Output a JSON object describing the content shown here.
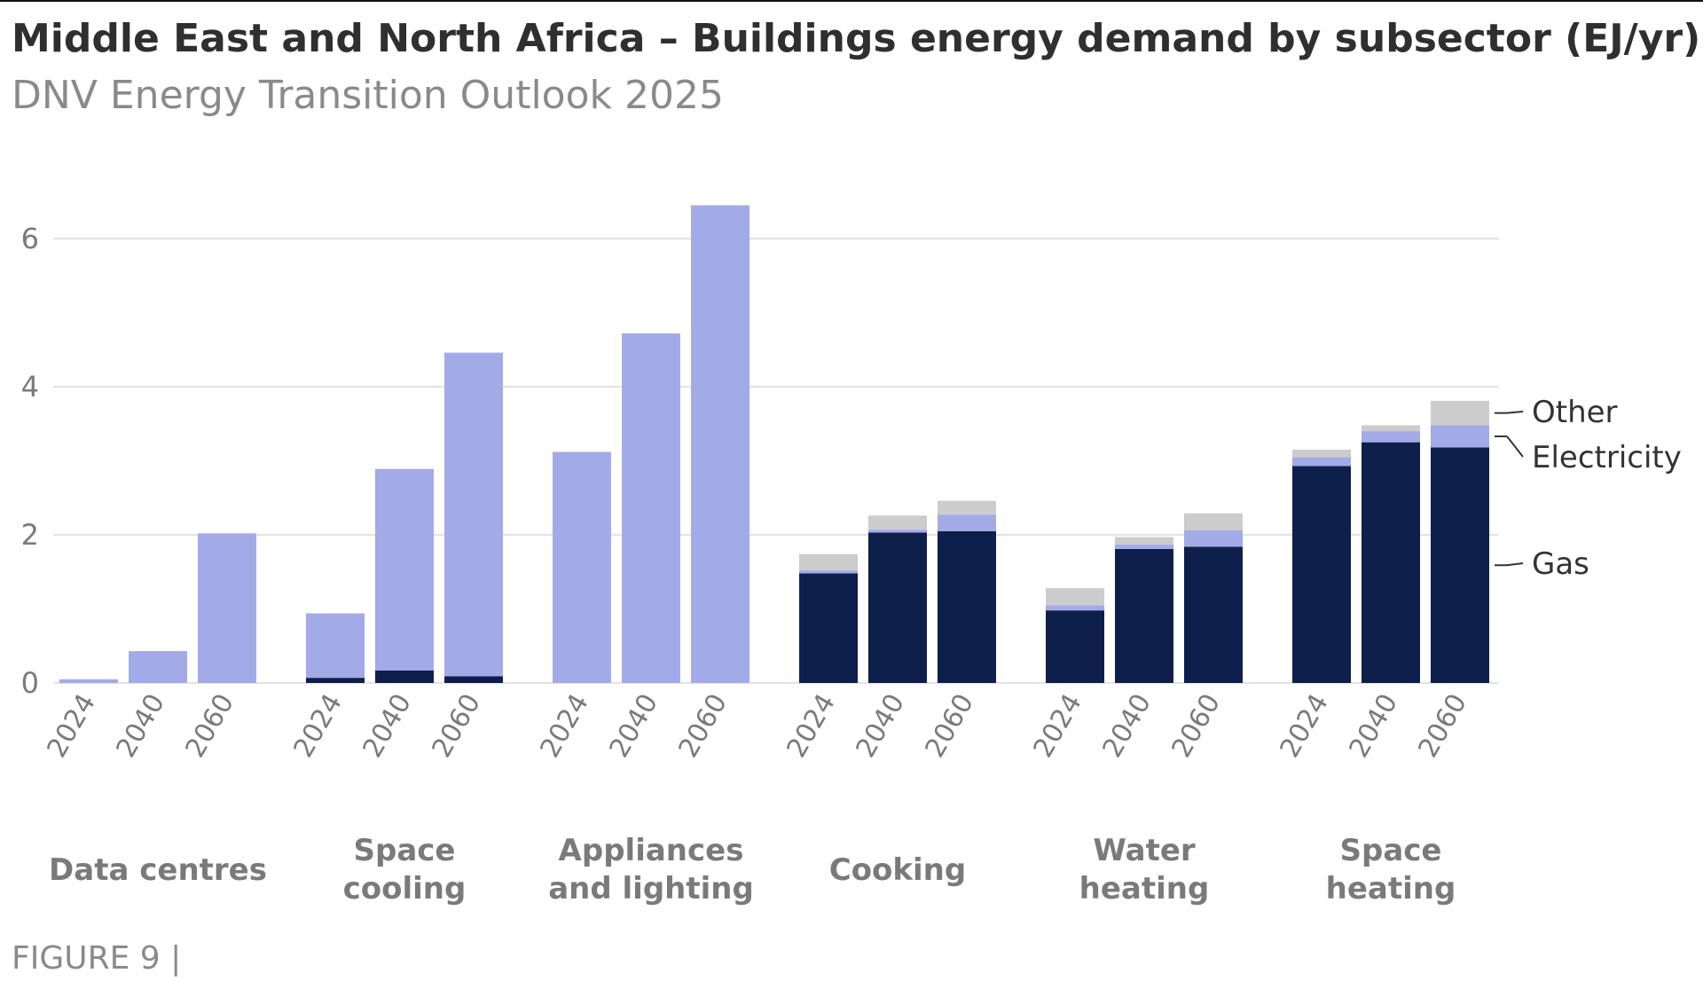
{
  "header": {
    "title": "Middle East and North Africa – Buildings energy demand by subsector (EJ/yr)",
    "subtitle": "DNV Energy Transition Outlook 2025"
  },
  "footer": {
    "figure_label": "FIGURE 9 |"
  },
  "colors": {
    "gas": "#0f1f4b",
    "electricity": "#a3aae8",
    "other": "#cccccc",
    "grid": "#d9d9d9",
    "axis_text": "#7a7a7a"
  },
  "chart_data": {
    "type": "bar",
    "stacked": true,
    "grouped": true,
    "title": "Middle East and North Africa – Buildings energy demand by subsector (EJ/yr)",
    "subtitle": "DNV Energy Transition Outlook 2025",
    "ylim": [
      0,
      6.5
    ],
    "yticks": [
      "0",
      "2",
      "4",
      "6"
    ],
    "ytick_values": [
      0,
      2,
      4,
      6
    ],
    "grid": true,
    "legend_placement": "right",
    "years": [
      "2024",
      "2040",
      "2060"
    ],
    "groups": [
      {
        "name": "Data centres",
        "lines": [
          "Data centres"
        ]
      },
      {
        "name": "Space cooling",
        "lines": [
          "Space",
          "cooling"
        ]
      },
      {
        "name": "Appliances and lighting",
        "lines": [
          "Appliances",
          "and lighting"
        ]
      },
      {
        "name": "Cooking",
        "lines": [
          "Cooking"
        ]
      },
      {
        "name": "Water heating",
        "lines": [
          "Water",
          "heating"
        ]
      },
      {
        "name": "Space heating",
        "lines": [
          "Space",
          "heating"
        ]
      }
    ],
    "series": [
      {
        "name": "Gas",
        "color": "#0f1f4b",
        "values": [
          [
            0,
            0,
            0
          ],
          [
            0.07,
            0.17,
            0.09
          ],
          [
            0,
            0,
            0
          ],
          [
            1.48,
            2.03,
            2.05
          ],
          [
            0.98,
            1.81,
            1.84
          ],
          [
            2.93,
            3.25,
            3.18
          ]
        ]
      },
      {
        "name": "Electricity",
        "color": "#a3aae8",
        "values": [
          [
            0.05,
            0.43,
            2.02
          ],
          [
            0.87,
            2.72,
            4.37
          ],
          [
            3.12,
            4.72,
            6.45
          ],
          [
            0.04,
            0.04,
            0.22
          ],
          [
            0.07,
            0.06,
            0.22
          ],
          [
            0.12,
            0.15,
            0.3
          ]
        ]
      },
      {
        "name": "Other",
        "color": "#cccccc",
        "values": [
          [
            0,
            0,
            0
          ],
          [
            0,
            0,
            0
          ],
          [
            0,
            0,
            0
          ],
          [
            0.22,
            0.19,
            0.19
          ],
          [
            0.23,
            0.1,
            0.23
          ],
          [
            0.1,
            0.08,
            0.33
          ]
        ]
      }
    ],
    "legend": [
      {
        "name": "Other",
        "series": "Other"
      },
      {
        "name": "Electricity",
        "series": "Electricity"
      },
      {
        "name": "Gas",
        "series": "Gas"
      }
    ]
  }
}
